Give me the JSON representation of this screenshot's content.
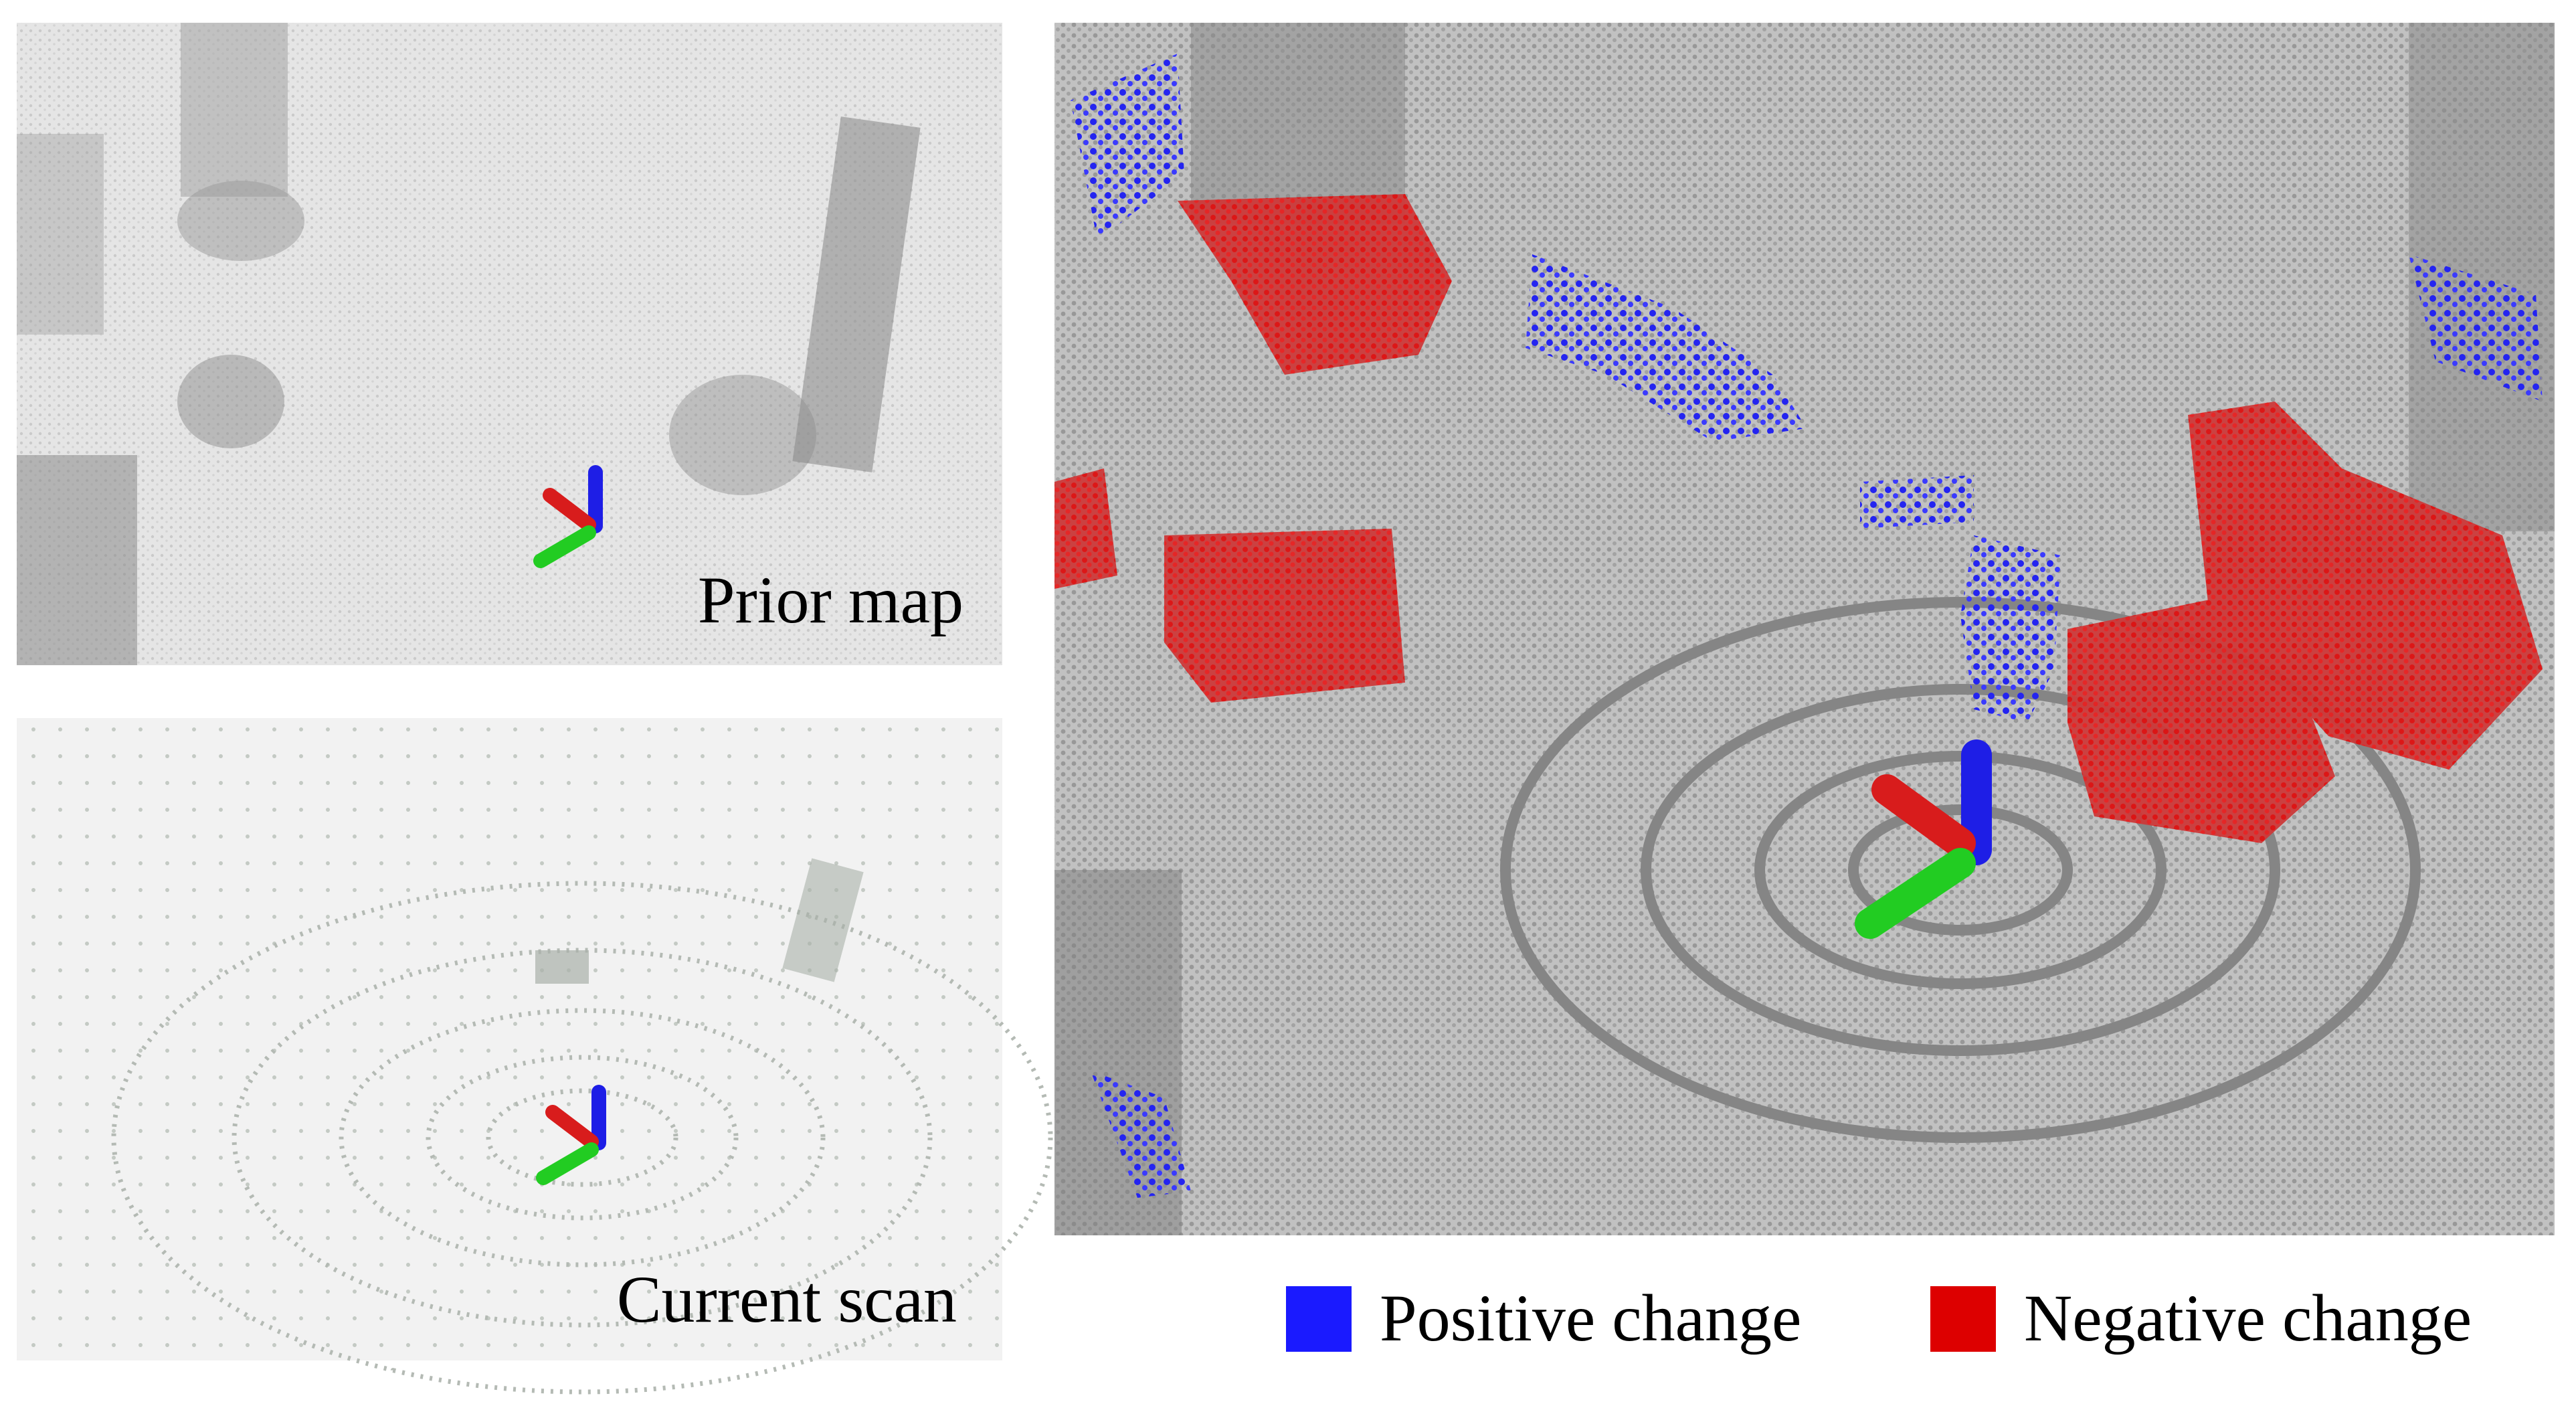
{
  "panels": {
    "prior_map": "Prior map",
    "current_scan": "Current scan"
  },
  "legend": [
    {
      "label": "Positive change",
      "color": "#1a1aff"
    },
    {
      "label": "Negative change",
      "color": "#dd0000"
    }
  ]
}
